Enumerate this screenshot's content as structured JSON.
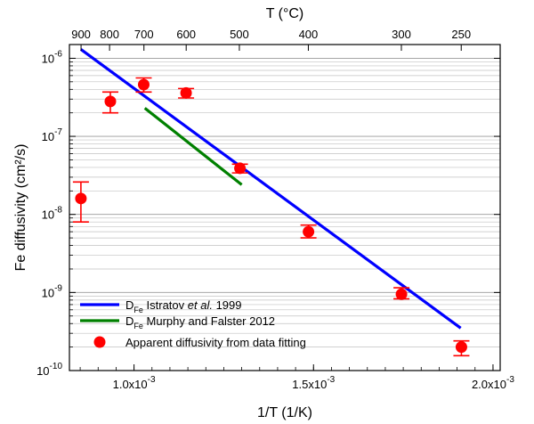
{
  "chart_data": {
    "type": "scatter",
    "x_scale": "linear",
    "y_scale": "log",
    "xlim": [
      0.00082,
      0.00202
    ],
    "ylim": [
      1e-10,
      1.5e-06
    ],
    "xlabel": "1/T (1/K)",
    "ylabel": "Fe diffusivity (cm²/s)",
    "top_axis_label": "T (°C)",
    "grid": "horizontal minor gridlines on log y axis",
    "x_ticks": [
      {
        "value": 0.001,
        "mantissa": "1.0x10",
        "exp": "-3"
      },
      {
        "value": 0.0015,
        "mantissa": "1.5x10",
        "exp": "-3"
      },
      {
        "value": 0.002,
        "mantissa": "2.0x10",
        "exp": "-3"
      }
    ],
    "y_ticks": [
      {
        "value": 1e-10,
        "base": "10",
        "exp": "-10"
      },
      {
        "value": 1e-09,
        "base": "10",
        "exp": "-9"
      },
      {
        "value": 1e-08,
        "base": "10",
        "exp": "-8"
      },
      {
        "value": 1e-07,
        "base": "10",
        "exp": "-7"
      },
      {
        "value": 1e-06,
        "base": "10",
        "exp": "-6"
      }
    ],
    "top_ticks": [
      {
        "label": "900",
        "t_celsius": 900
      },
      {
        "label": "800",
        "t_celsius": 800
      },
      {
        "label": "700",
        "t_celsius": 700
      },
      {
        "label": "600",
        "t_celsius": 600
      },
      {
        "label": "500",
        "t_celsius": 500
      },
      {
        "label": "400",
        "t_celsius": 400
      },
      {
        "label": "300",
        "t_celsius": 300
      },
      {
        "label": "250",
        "t_celsius": 250
      }
    ],
    "series": [
      {
        "kind": "line",
        "color": "#0000ff",
        "legend": {
          "pre": "D",
          "sub": "Fe",
          "mid": " Istratov ",
          "italic": "et al.",
          "post": " 1999"
        },
        "points": [
          [
            0.000852,
            1.3e-06
          ],
          [
            0.00191,
            3.5e-10
          ]
        ]
      },
      {
        "kind": "line",
        "color": "#008000",
        "legend": {
          "pre": "D",
          "sub": "Fe",
          "mid": " Murphy and Falster 2012",
          "italic": "",
          "post": ""
        },
        "points": [
          [
            0.00103,
            2.3e-07
          ],
          [
            0.0013,
            2.4e-08
          ]
        ]
      },
      {
        "kind": "points",
        "color": "#ff0000",
        "legend": {
          "pre": "",
          "sub": "",
          "mid": "Apparent diffusivity from data fitting",
          "italic": "",
          "post": ""
        },
        "points": [
          {
            "x": 0.000852,
            "y": 1.6e-08,
            "y_low": 8e-09,
            "y_high": 2.6e-08
          },
          {
            "x": 0.000934,
            "y": 2.8e-07,
            "y_low": 2e-07,
            "y_high": 3.7e-07
          },
          {
            "x": 0.001027,
            "y": 4.6e-07,
            "y_low": 3.7e-07,
            "y_high": 5.6e-07
          },
          {
            "x": 0.001145,
            "y": 3.6e-07,
            "y_low": 3.1e-07,
            "y_high": 4.1e-07
          },
          {
            "x": 0.001295,
            "y": 3.9e-08,
            "y_low": 3.4e-08,
            "y_high": 4.4e-08
          },
          {
            "x": 0.001486,
            "y": 6e-09,
            "y_low": 5e-09,
            "y_high": 7.3e-09
          },
          {
            "x": 0.001745,
            "y": 9.5e-10,
            "y_low": 8.3e-10,
            "y_high": 1.15e-09
          },
          {
            "x": 0.001912,
            "y": 2e-10,
            "y_low": 1.55e-10,
            "y_high": 2.4e-10
          }
        ]
      }
    ]
  }
}
